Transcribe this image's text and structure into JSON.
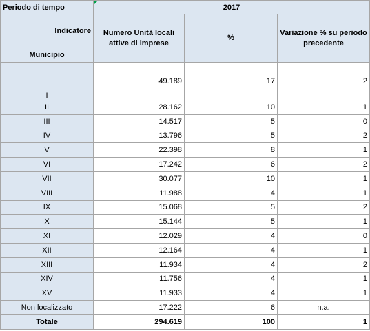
{
  "header": {
    "period_label": "Periodo di tempo",
    "year": "2017",
    "indicator_label": "Indicatore",
    "row_label": "Municipio",
    "columns": [
      "Numero Unità locali attive di imprese",
      "%",
      "Variazione % su periodo precedente"
    ]
  },
  "rows": [
    {
      "municipio": "I",
      "values": [
        "49.189",
        "17",
        "2"
      ]
    },
    {
      "municipio": "II",
      "values": [
        "28.162",
        "10",
        "1"
      ]
    },
    {
      "municipio": "III",
      "values": [
        "14.517",
        "5",
        "0"
      ]
    },
    {
      "municipio": "IV",
      "values": [
        "13.796",
        "5",
        "2"
      ]
    },
    {
      "municipio": "V",
      "values": [
        "22.398",
        "8",
        "1"
      ]
    },
    {
      "municipio": "VI",
      "values": [
        "17.242",
        "6",
        "2"
      ]
    },
    {
      "municipio": "VII",
      "values": [
        "30.077",
        "10",
        "1"
      ]
    },
    {
      "municipio": "VIII",
      "values": [
        "11.988",
        "4",
        "1"
      ]
    },
    {
      "municipio": "IX",
      "values": [
        "15.068",
        "5",
        "2"
      ]
    },
    {
      "municipio": "X",
      "values": [
        "15.144",
        "5",
        "1"
      ]
    },
    {
      "municipio": "XI",
      "values": [
        "12.029",
        "4",
        "0"
      ]
    },
    {
      "municipio": "XII",
      "values": [
        "12.164",
        "4",
        "1"
      ]
    },
    {
      "municipio": "XIII",
      "values": [
        "11.934",
        "4",
        "2"
      ]
    },
    {
      "municipio": "XIV",
      "values": [
        "11.756",
        "4",
        "1"
      ]
    },
    {
      "municipio": "XV",
      "values": [
        "11.933",
        "4",
        "1"
      ]
    },
    {
      "municipio": "Non localizzato",
      "values": [
        "17.222",
        "6",
        "n.a."
      ]
    }
  ],
  "total": {
    "label": "Totale",
    "values": [
      "294.619",
      "100",
      "1"
    ]
  }
}
